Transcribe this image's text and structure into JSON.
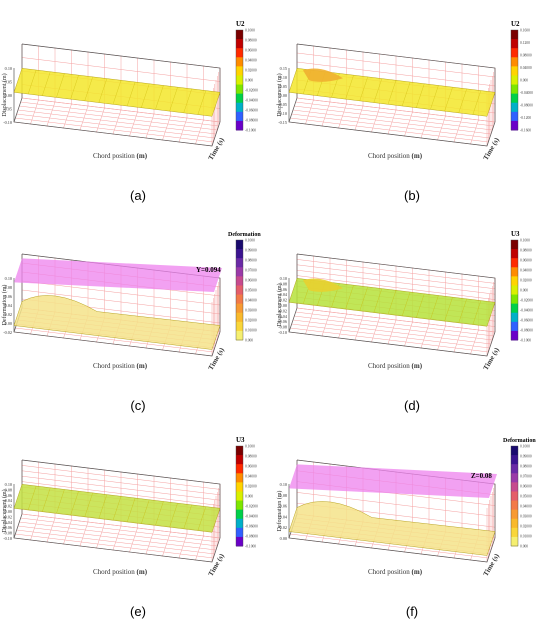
{
  "chart_data": [
    {
      "type": "surface3d",
      "panel_label": "(a)",
      "ylabel": "Displacement (m)",
      "xlabel": "Chord position (m)",
      "zlabel": "Time (s)",
      "yticks": [
        "0.10",
        "0.05",
        "0.00",
        "-0.05",
        "-0.10"
      ],
      "colorbar": {
        "title": "U2",
        "ticks": [
          "0.1000",
          "0.08000",
          "0.06000",
          "0.04000",
          "0.02000",
          "0.000",
          "-0.02000",
          "-0.04000",
          "-0.06000",
          "-0.08000",
          "-0.1000"
        ]
      },
      "surface": "flat",
      "colors": {
        "surface": "#f3e62a",
        "grid": "#f4a0a0"
      }
    },
    {
      "type": "surface3d",
      "panel_label": "(b)",
      "ylabel": "Displacement (m)",
      "xlabel": "Chord position (m)",
      "zlabel": "Time (s)",
      "yticks": [
        "0.15",
        "0.10",
        "0.05",
        "0.00",
        "-0.05",
        "-0.10",
        "-0.15"
      ],
      "colorbar": {
        "title": "U2",
        "ticks": [
          "0.1600",
          "0.1200",
          "0.08000",
          "0.04000",
          "0.000",
          "-0.04000",
          "-0.08000",
          "-0.1200",
          "-0.1600"
        ]
      },
      "surface": "hump",
      "colors": {
        "surface": "#f3e62a",
        "grid": "#f4a0a0"
      }
    },
    {
      "type": "surface3d",
      "panel_label": "(c)",
      "ylabel": "Deformation (m)",
      "xlabel": "Chord position (m)",
      "zlabel": "Time (s)",
      "yticks": [
        "0.10",
        "0.08",
        "0.06",
        "0.04",
        "0.02",
        "0.00",
        "-0.02"
      ],
      "colorbar": {
        "title": "Deformation",
        "ticks": [
          "0.1000",
          "0.09000",
          "0.08000",
          "0.07000",
          "0.06000",
          "0.05000",
          "0.04000",
          "0.03000",
          "0.02000",
          "0.01000",
          "0.000"
        ]
      },
      "threshold": {
        "label": "Y=0.094",
        "value": 0.094
      },
      "surface": "bump",
      "colors": {
        "surface": "#f5e38a",
        "plane": "#ee82ee",
        "grid": "#f4a0a0"
      }
    },
    {
      "type": "surface3d",
      "panel_label": "(d)",
      "ylabel": "Displacement (m)",
      "xlabel": "Chord position (m)",
      "zlabel": "Time (s)",
      "yticks": [
        "0.10",
        "0.08",
        "0.06",
        "0.04",
        "0.02",
        "0.00",
        "-0.02",
        "-0.04",
        "-0.06",
        "-0.08",
        "-0.10"
      ],
      "colorbar": {
        "title": "U3",
        "ticks": [
          "0.1000",
          "0.08000",
          "0.06000",
          "0.04000",
          "0.02000",
          "0.000",
          "-0.02000",
          "-0.04000",
          "-0.06000",
          "-0.08000",
          "-0.1000"
        ]
      },
      "surface": "hump-green",
      "colors": {
        "surface": "#b6e23a",
        "grid": "#f4a0a0"
      }
    },
    {
      "type": "surface3d",
      "panel_label": "(e)",
      "ylabel": "Displacement (m)",
      "xlabel": "Chord position (m)",
      "zlabel": "Time (s)",
      "yticks": [
        "0.10",
        "0.08",
        "0.06",
        "0.04",
        "0.02",
        "0.00",
        "-0.02",
        "-0.04",
        "-0.06",
        "-0.08",
        "-0.10"
      ],
      "colorbar": {
        "title": "U3",
        "ticks": [
          "0.1000",
          "0.08000",
          "0.06000",
          "0.04000",
          "0.02000",
          "0.000",
          "-0.02000",
          "-0.04000",
          "-0.06000",
          "-0.08000",
          "-0.1000"
        ]
      },
      "surface": "flat-green",
      "colors": {
        "surface": "#c3e042",
        "grid": "#f4a0a0"
      }
    },
    {
      "type": "surface3d",
      "panel_label": "(f)",
      "ylabel": "Deformation (m)",
      "xlabel": "Chord position (m)",
      "zlabel": "Time (s)",
      "yticks": [
        "0.10",
        "0.08",
        "0.06",
        "0.04",
        "0.02",
        "0.00"
      ],
      "colorbar": {
        "title": "Deformation",
        "ticks": [
          "0.1000",
          "0.09000",
          "0.08000",
          "0.07000",
          "0.06000",
          "0.05000",
          "0.04000",
          "0.03000",
          "0.02000",
          "0.01000",
          "0.000"
        ]
      },
      "threshold": {
        "label": "Z=0.08",
        "value": 0.08
      },
      "surface": "bump",
      "colors": {
        "surface": "#f5e38a",
        "plane": "#ee82ee",
        "grid": "#f4a0a0"
      }
    }
  ]
}
